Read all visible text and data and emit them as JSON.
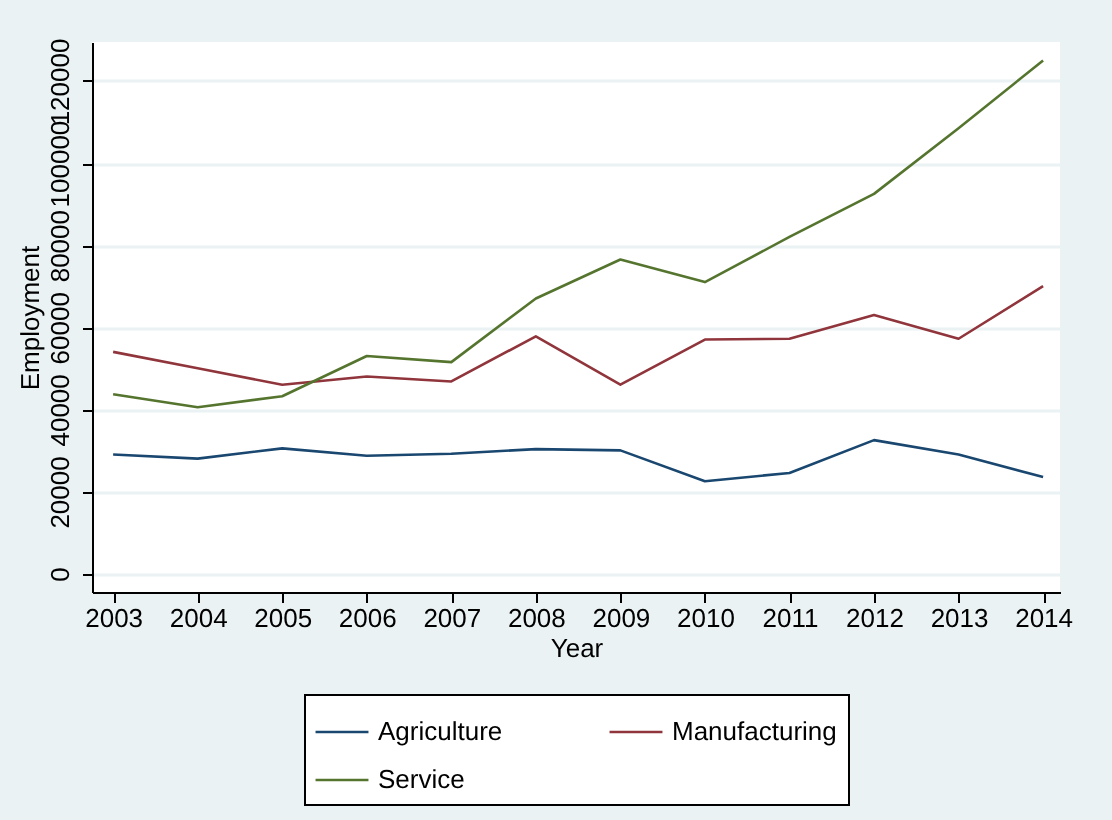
{
  "chart_data": {
    "type": "line",
    "xlabel": "Year",
    "ylabel": "Employment",
    "x": [
      2003,
      2004,
      2005,
      2006,
      2007,
      2008,
      2009,
      2010,
      2011,
      2012,
      2013,
      2014
    ],
    "series": [
      {
        "name": "Agriculture",
        "color": "#1a476f",
        "values": [
          29000,
          28000,
          30500,
          28700,
          29200,
          30300,
          30000,
          22500,
          24500,
          32500,
          29000,
          23500
        ]
      },
      {
        "name": "Manufacturing",
        "color": "#90353b",
        "values": [
          54000,
          50000,
          46000,
          48000,
          46800,
          57800,
          46000,
          57000,
          57200,
          63000,
          57200,
          70000
        ]
      },
      {
        "name": "Service",
        "color": "#55752f",
        "values": [
          43700,
          40500,
          43200,
          53000,
          51500,
          67000,
          76500,
          71000,
          82000,
          92500,
          108500,
          125000
        ]
      }
    ],
    "xlim": [
      2002.75,
      2014.2
    ],
    "xticks": [
      2003,
      2004,
      2005,
      2006,
      2007,
      2008,
      2009,
      2010,
      2011,
      2012,
      2013,
      2014
    ],
    "ylim": [
      -4500,
      129500
    ],
    "yticks": [
      0,
      20000,
      40000,
      60000,
      80000,
      100000,
      120000
    ],
    "grid": "y",
    "legend": "bottom",
    "line_style": "solid",
    "marker": "none"
  }
}
